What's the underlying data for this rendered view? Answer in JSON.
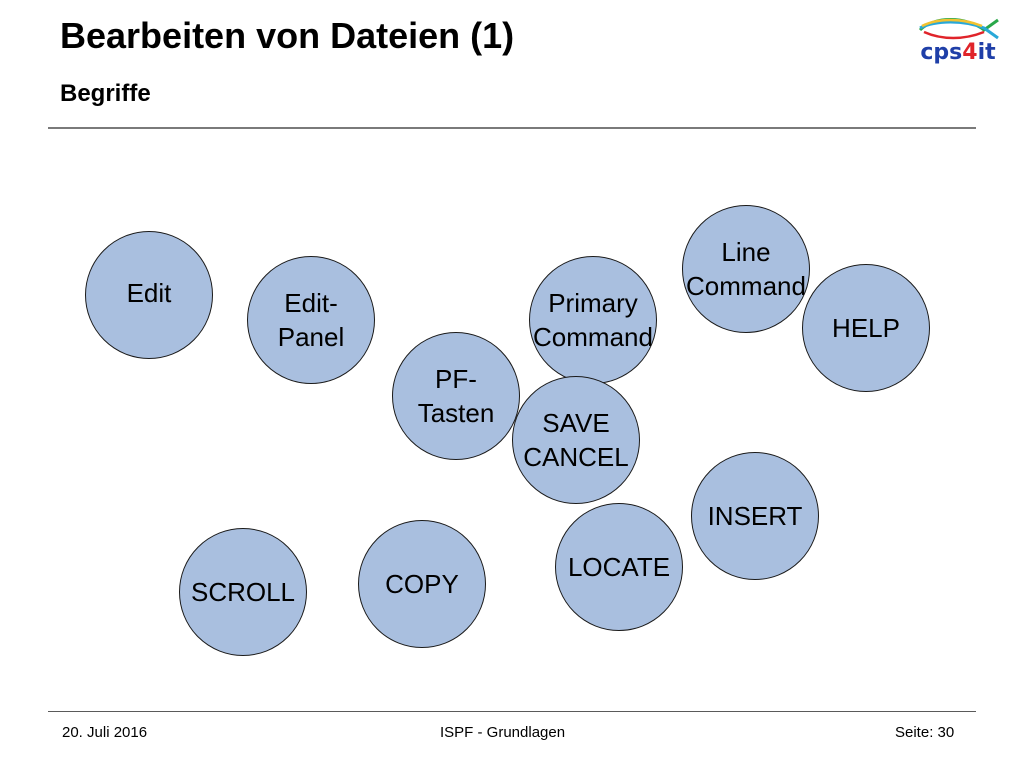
{
  "slide": {
    "title": "Bearbeiten von Dateien (1)",
    "subtitle": "Begriffe"
  },
  "logo": {
    "text_main": "cps",
    "text_accent": "4",
    "text_end": "it",
    "colors": {
      "blue": "#1f3fa8",
      "red": "#e0242a",
      "green": "#2aa84a",
      "cyan": "#29a8d8",
      "yellow": "#f2c230"
    }
  },
  "concepts": [
    {
      "label": "Edit"
    },
    {
      "label": "Edit-\nPanel"
    },
    {
      "label": "PF-\nTasten"
    },
    {
      "label": "Primary\nCommand"
    },
    {
      "label": "Line\nCommand"
    },
    {
      "label": "HELP"
    },
    {
      "label": "SAVE\nCANCEL"
    },
    {
      "label": "INSERT"
    },
    {
      "label": "LOCATE"
    },
    {
      "label": "COPY"
    },
    {
      "label": "SCROLL"
    }
  ],
  "footer": {
    "date": "20. Juli 2016",
    "course": "ISPF - Grundlagen",
    "page": "Seite: 30"
  },
  "colors": {
    "circle_fill": "#a9bfdf",
    "circle_stroke": "#1a1a1a"
  }
}
